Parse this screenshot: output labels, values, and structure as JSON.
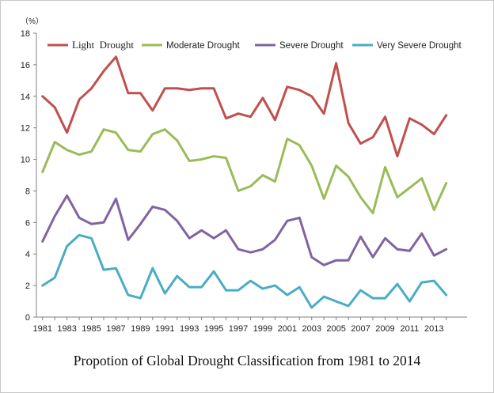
{
  "chart_data": {
    "type": "line",
    "title": "Propotion of Global Drought Classification from 1981 to 2014",
    "unit_label": "（%）",
    "ylim": [
      0,
      18
    ],
    "yticks": [
      0,
      2,
      4,
      6,
      8,
      10,
      12,
      14,
      16,
      18
    ],
    "x": [
      1981,
      1982,
      1983,
      1984,
      1985,
      1986,
      1987,
      1988,
      1989,
      1990,
      1991,
      1992,
      1993,
      1994,
      1995,
      1996,
      1997,
      1998,
      1999,
      2000,
      2001,
      2002,
      2003,
      2004,
      2005,
      2006,
      2007,
      2008,
      2009,
      2010,
      2011,
      2012,
      2013,
      2014
    ],
    "xtick_labels": [
      "1981",
      "1983",
      "1985",
      "1987",
      "1989",
      "1991",
      "1993",
      "1995",
      "1997",
      "1999",
      "2001",
      "2003",
      "2005",
      "2007",
      "2009",
      "2011",
      "2013"
    ],
    "legend_position": "top",
    "grid": false,
    "series": [
      {
        "name": "Light  Drought",
        "color": "#c0504d",
        "values": [
          14.0,
          13.3,
          11.7,
          13.8,
          14.5,
          15.6,
          16.5,
          14.2,
          14.2,
          13.1,
          14.5,
          14.5,
          14.4,
          14.5,
          14.5,
          12.6,
          12.9,
          12.7,
          13.9,
          12.5,
          14.6,
          14.4,
          14.0,
          12.9,
          16.1,
          12.3,
          11.0,
          11.4,
          12.7,
          10.2,
          12.6,
          12.2,
          11.6,
          12.8
        ]
      },
      {
        "name": "Moderate Drought",
        "color": "#9bbb59",
        "values": [
          9.2,
          11.1,
          10.6,
          10.3,
          10.5,
          11.9,
          11.7,
          10.6,
          10.5,
          11.6,
          11.9,
          11.2,
          9.9,
          10.0,
          10.2,
          10.1,
          8.0,
          8.3,
          9.0,
          8.6,
          11.3,
          10.9,
          9.6,
          7.5,
          9.6,
          8.9,
          7.6,
          6.6,
          9.5,
          7.6,
          8.2,
          8.8,
          6.8,
          8.5
        ]
      },
      {
        "name": "Severe Drought",
        "color": "#8064a2",
        "values": [
          4.8,
          6.4,
          7.7,
          6.3,
          5.9,
          6.0,
          7.5,
          4.9,
          5.9,
          7.0,
          6.8,
          6.1,
          5.0,
          5.5,
          5.0,
          5.5,
          4.3,
          4.1,
          4.3,
          4.9,
          6.1,
          6.3,
          3.8,
          3.3,
          3.6,
          3.6,
          5.1,
          3.8,
          5.0,
          4.3,
          4.2,
          5.3,
          3.9,
          4.3
        ]
      },
      {
        "name": "Very Severe Drought",
        "color": "#4bacc6",
        "values": [
          2.0,
          2.5,
          4.5,
          5.2,
          5.0,
          3.0,
          3.1,
          1.4,
          1.2,
          3.1,
          1.5,
          2.6,
          1.9,
          1.9,
          2.9,
          1.7,
          1.7,
          2.3,
          1.8,
          2.0,
          1.4,
          1.9,
          0.6,
          1.3,
          1.0,
          0.7,
          1.7,
          1.2,
          1.2,
          2.1,
          1.0,
          2.2,
          2.3,
          1.4
        ]
      }
    ]
  }
}
